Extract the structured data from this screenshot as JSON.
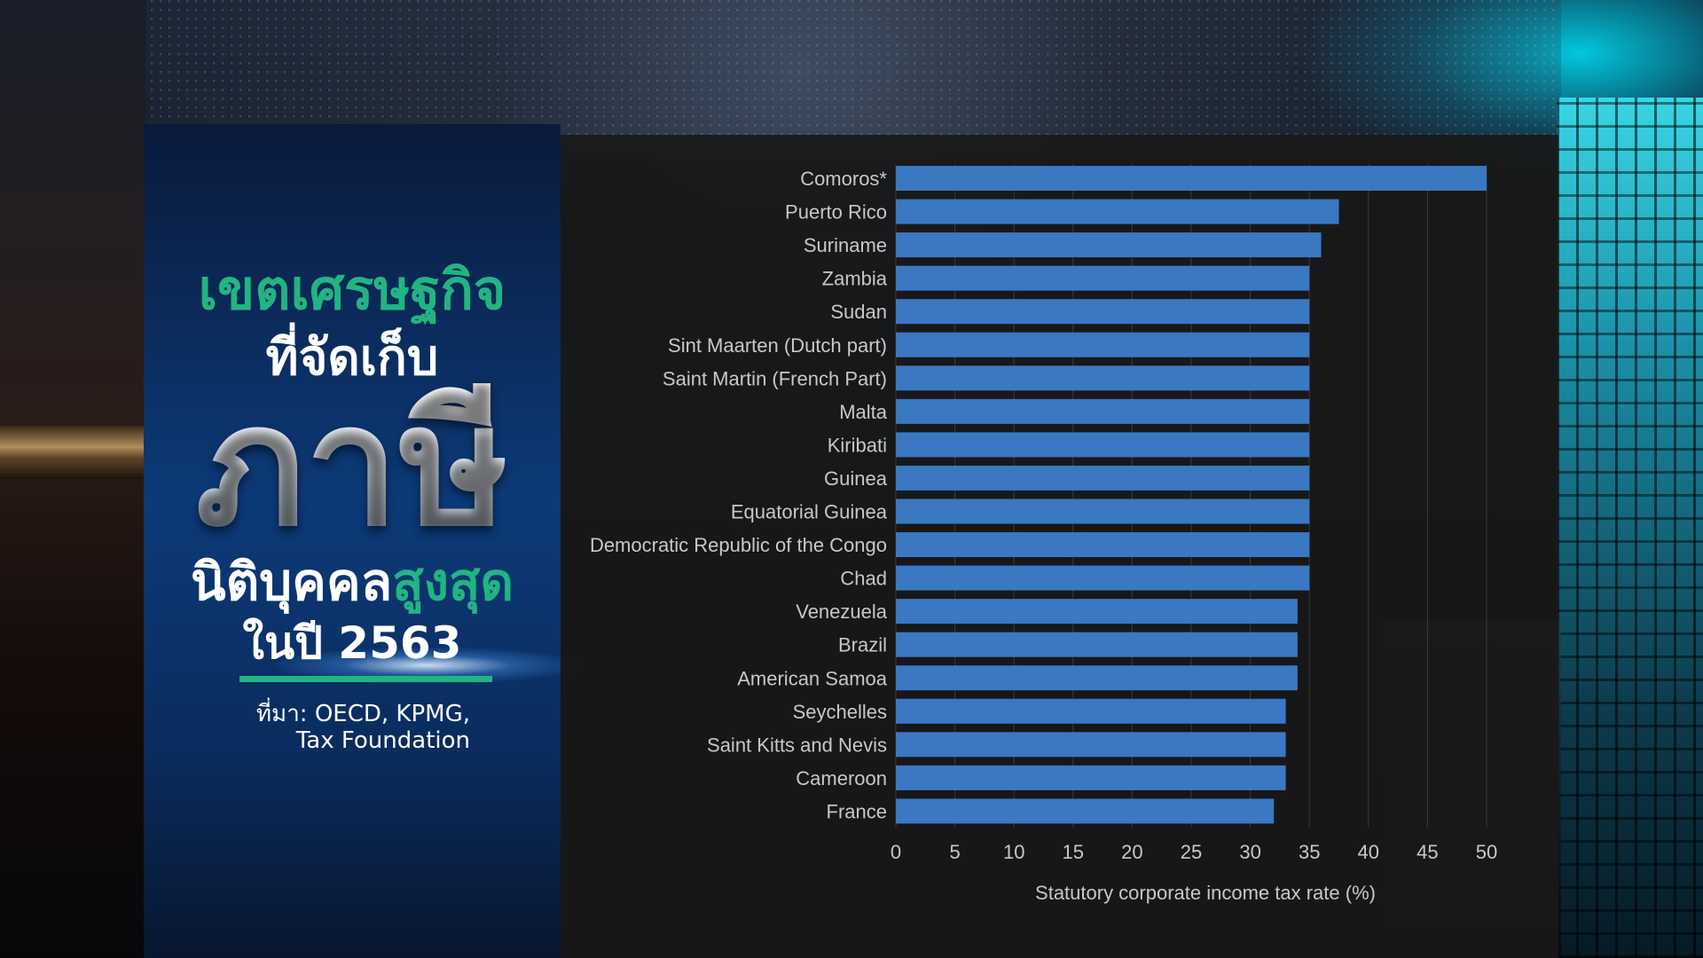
{
  "headline": {
    "line1": "เขตเศรษฐกิจ",
    "line2": "ที่จัดเก็บ",
    "line3": "ภาษี",
    "line4_white": "นิติบุคคล",
    "line4_green": "สูงสุด",
    "line5": "ในปี 2563"
  },
  "source": {
    "line1": "ที่มา: OECD, KPMG,",
    "line2": "Tax Foundation"
  },
  "colors": {
    "bar": "#3a78c2",
    "headline_green": "#22b483",
    "axis_text": "#c8c8c8",
    "gridline": "#3a3a3a"
  },
  "chart_data": {
    "type": "bar",
    "orientation": "horizontal",
    "categories": [
      "Comoros*",
      "Puerto Rico",
      "Suriname",
      "Zambia",
      "Sudan",
      "Sint Maarten (Dutch part)",
      "Saint Martin (French Part)",
      "Malta",
      "Kiribati",
      "Guinea",
      "Equatorial Guinea",
      "Democratic Republic of the Congo",
      "Chad",
      "Venezuela",
      "Brazil",
      "American Samoa",
      "Seychelles",
      "Saint Kitts and Nevis",
      "Cameroon",
      "France"
    ],
    "values": [
      50,
      37.5,
      36,
      35,
      35,
      35,
      35,
      35,
      35,
      35,
      35,
      35,
      35,
      34,
      34,
      34,
      33,
      33,
      33,
      32
    ],
    "xlabel": "Statutory corporate income tax rate (%)",
    "xlim": [
      0,
      50
    ],
    "xticks": [
      0,
      5,
      10,
      15,
      20,
      25,
      30,
      35,
      40,
      45,
      50
    ],
    "grid": "vertical"
  }
}
